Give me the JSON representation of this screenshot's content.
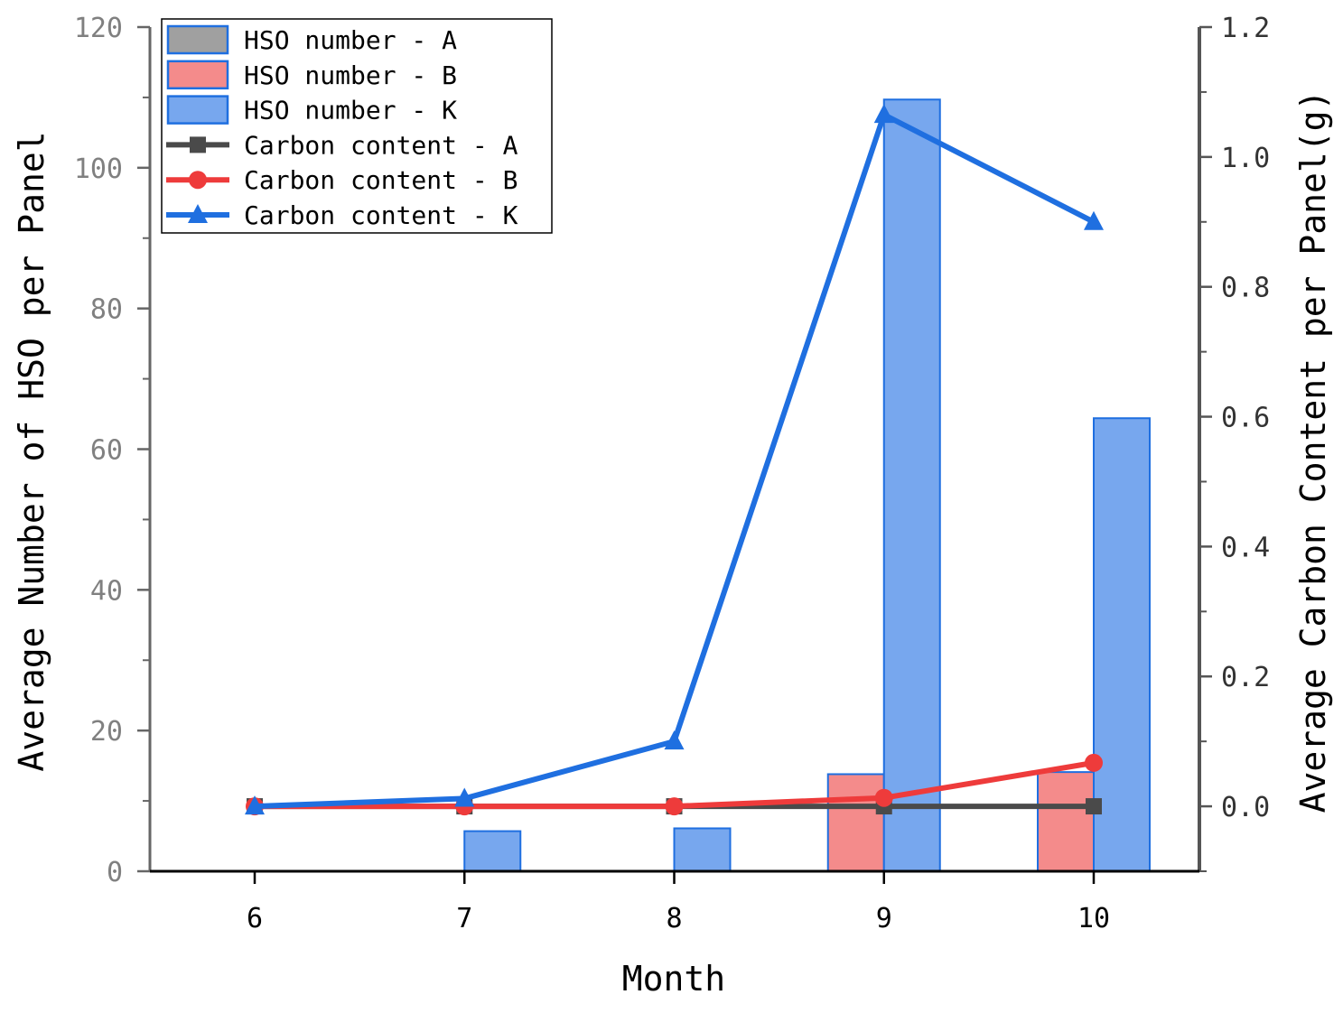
{
  "chart_data": {
    "type": "bar",
    "xlabel": "Month",
    "ylabel_left": "Average Number of HSO per Panel",
    "ylabel_right": "Average Carbon Content per Panel(g)",
    "categories": [
      "6",
      "7",
      "8",
      "9",
      "10"
    ],
    "x_ticks": [
      "6",
      "7",
      "8",
      "9",
      "10"
    ],
    "ylim_left": [
      0,
      120
    ],
    "yticks_left": [
      "0",
      "20",
      "40",
      "60",
      "80",
      "100",
      "120"
    ],
    "ylim_right": [
      -0.1,
      1.2
    ],
    "yticks_right": [
      "0.0",
      "0.2",
      "0.4",
      "0.6",
      "0.8",
      "1.0",
      "1.2"
    ],
    "grid": false,
    "legend_position": "top-left",
    "bar_series": [
      {
        "name": "HSO number - A",
        "color": "#a0a0a0",
        "values": [
          0,
          0,
          0,
          0,
          0
        ]
      },
      {
        "name": "HSO number - B",
        "color": "#f48b8b",
        "values": [
          0,
          0,
          0,
          13.8,
          14.1
        ]
      },
      {
        "name": "HSO number - K",
        "color": "#77a7ee",
        "values": [
          0,
          5.7,
          6.1,
          109.7,
          64.4
        ]
      }
    ],
    "line_series": [
      {
        "name": "Carbon content - A",
        "color": "#4a4a4a",
        "marker": "square",
        "values": [
          0.0,
          0.0,
          0.0,
          0.0,
          0.0
        ]
      },
      {
        "name": "Carbon content - B",
        "color": "#ee3b3b",
        "marker": "circle",
        "values": [
          0.0,
          0.0,
          0.0,
          0.013,
          0.067
        ]
      },
      {
        "name": "Carbon content - K",
        "color": "#1f6fe0",
        "marker": "triangle",
        "values": [
          0.0,
          0.012,
          0.1,
          1.065,
          0.9
        ]
      }
    ]
  }
}
